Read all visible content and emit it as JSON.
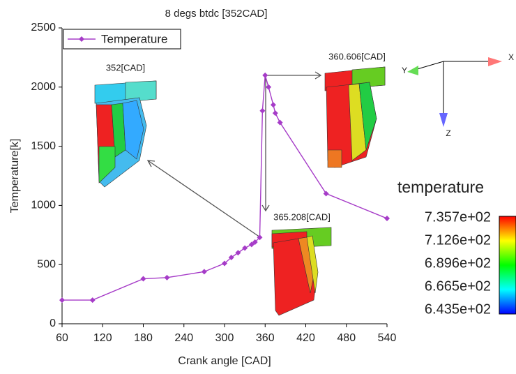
{
  "chart_data": {
    "type": "line",
    "title": "8 degs btdc [352CAD]",
    "x_label": "Crank angle [CAD]",
    "y_label": "Temperature[k]",
    "x": [
      60,
      105,
      180,
      215,
      270,
      300,
      310,
      320,
      330,
      340,
      345,
      352,
      356,
      360,
      365,
      372,
      375,
      382,
      450,
      540
    ],
    "series": [
      {
        "name": "Temperature",
        "color": "#a63cc8",
        "values": [
          200,
          200,
          380,
          390,
          440,
          510,
          560,
          600,
          640,
          670,
          690,
          730,
          1800,
          2100,
          2000,
          1850,
          1780,
          1700,
          1100,
          890
        ]
      }
    ],
    "xlim": [
      60,
      540
    ],
    "xticks": [
      60,
      120,
      180,
      240,
      300,
      360,
      420,
      480,
      540
    ],
    "ylim": [
      0,
      2500
    ],
    "yticks": [
      0,
      500,
      1000,
      1500,
      2000,
      2500
    ],
    "legend": "upper left",
    "annotations": [
      "352[CAD]",
      "360.606[CAD]",
      "365.208[CAD]"
    ]
  },
  "colorbar": {
    "title": "temperature",
    "labels": [
      "7.357e+02",
      "7.126e+02",
      "6.896e+02",
      "6.665e+02",
      "6.435e+02"
    ]
  },
  "axes_triad": {
    "labels": [
      "X",
      "Y",
      "Z"
    ]
  }
}
